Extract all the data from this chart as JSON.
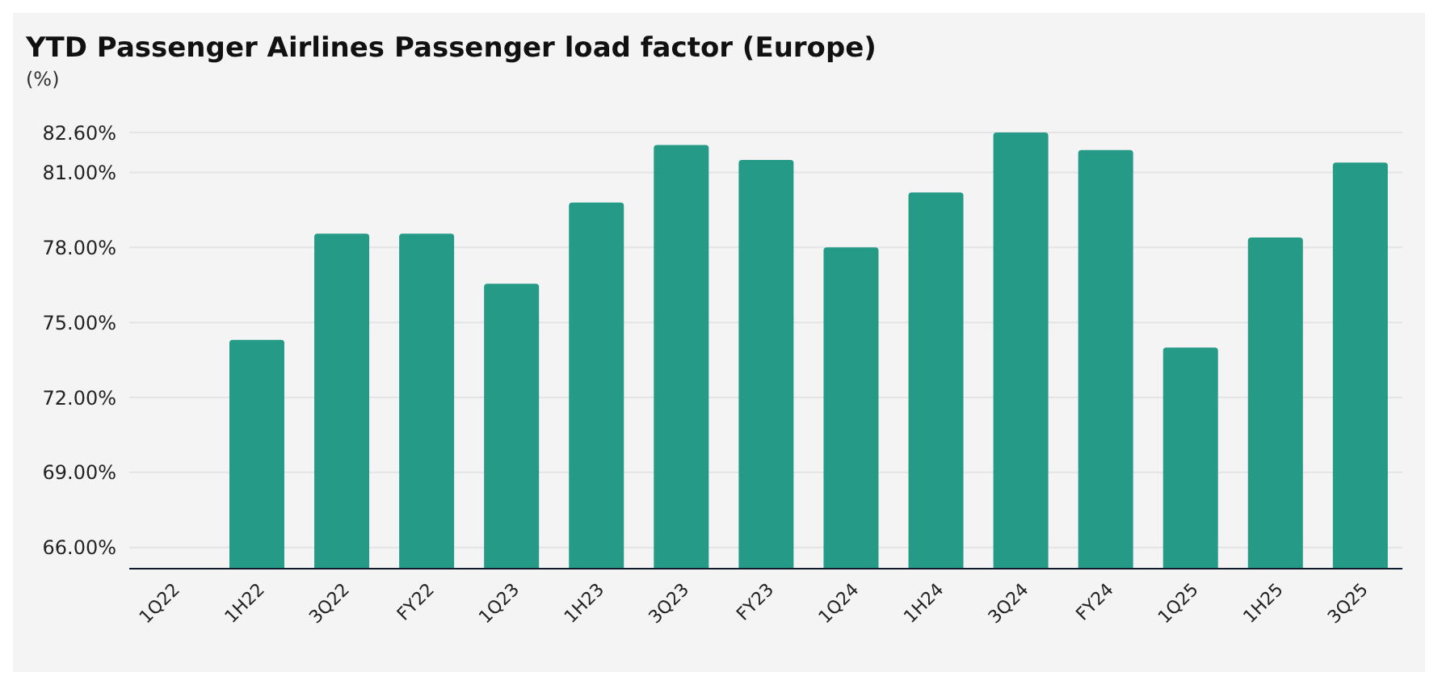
{
  "chart_data": {
    "type": "bar",
    "title": "YTD Passenger Airlines Passenger load factor (Europe)",
    "subtitle": "(%)",
    "categories": [
      "1Q22",
      "1H22",
      "3Q22",
      "FY22",
      "1Q23",
      "1H23",
      "3Q23",
      "FY23",
      "1Q24",
      "1H24",
      "3Q24",
      "FY24",
      "1Q25",
      "1H25",
      "3Q25"
    ],
    "values": [
      null,
      74.3,
      78.55,
      78.55,
      76.55,
      79.8,
      82.1,
      81.5,
      78.0,
      80.2,
      82.6,
      81.9,
      74.0,
      78.4,
      81.4
    ],
    "color": "#259a87",
    "ylim": [
      65.15,
      82.6
    ],
    "yticks": [
      {
        "value": 66,
        "label": "66.00%"
      },
      {
        "value": 69,
        "label": "69.00%"
      },
      {
        "value": 72,
        "label": "72.00%"
      },
      {
        "value": 75,
        "label": "75.00%"
      },
      {
        "value": 78,
        "label": "78.00%"
      },
      {
        "value": 81,
        "label": "81.00%"
      },
      {
        "value": 82.6,
        "label": "82.60%"
      }
    ],
    "grid": "y",
    "legend": false
  }
}
